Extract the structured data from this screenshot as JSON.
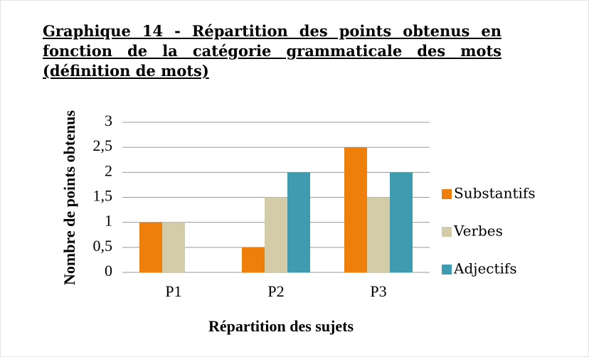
{
  "chart_data": {
    "type": "bar",
    "title": "Graphique 14 - Répartition des points obtenus en fonction de la catégorie grammaticale des mots (définition de mots)",
    "categories": [
      "P1",
      "P2",
      "P3"
    ],
    "series": [
      {
        "name": "Substantifs",
        "color": "#ee7f0a",
        "values": [
          1,
          0.5,
          2.5
        ]
      },
      {
        "name": "Verbes",
        "color": "#d4cca6",
        "values": [
          1,
          1.5,
          1.5
        ]
      },
      {
        "name": "Adjectifs",
        "color": "#3e9bb0",
        "values": [
          0,
          2,
          2
        ]
      }
    ],
    "x_label": "Répartition des sujets",
    "y_label": "Nombre de points obtenus",
    "ylim": [
      0,
      3
    ],
    "yticks": [
      0,
      {
        "value": 0.5,
        "label": "0,5"
      },
      1,
      {
        "value": 1.5,
        "label": "1,5"
      },
      2,
      {
        "value": 2.5,
        "label": "2,5"
      },
      3
    ],
    "grid": true,
    "legend": "right"
  }
}
